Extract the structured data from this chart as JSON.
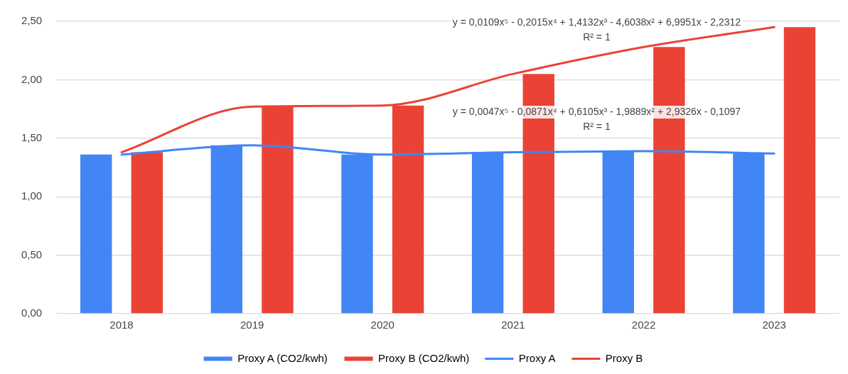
{
  "chart_data": {
    "type": "bar",
    "categories": [
      "2018",
      "2019",
      "2020",
      "2021",
      "2022",
      "2023"
    ],
    "series": [
      {
        "name": "Proxy A (CO2/kwh)",
        "color": "#4285f4",
        "values": [
          1.36,
          1.44,
          1.36,
          1.38,
          1.39,
          1.37
        ]
      },
      {
        "name": "Proxy B (CO2/kwh)",
        "color": "#ea4335",
        "values": [
          1.38,
          1.77,
          1.78,
          2.05,
          2.28,
          2.45
        ]
      },
      {
        "name": "Proxy A",
        "type": "line",
        "color": "#4285f4",
        "values": [
          1.36,
          1.44,
          1.36,
          1.38,
          1.39,
          1.37
        ]
      },
      {
        "name": "Proxy B",
        "type": "line",
        "color": "#ea4335",
        "values": [
          1.38,
          1.77,
          1.78,
          2.05,
          2.28,
          2.45
        ]
      }
    ],
    "ylim": [
      0,
      2.5
    ],
    "yticks": [
      {
        "value": 0,
        "label": "0,00"
      },
      {
        "value": 0.5,
        "label": "0,50"
      },
      {
        "value": 1,
        "label": "1,00"
      },
      {
        "value": 1.5,
        "label": "1,50"
      },
      {
        "value": 2,
        "label": "2,00"
      },
      {
        "value": 2.5,
        "label": "2,50"
      }
    ],
    "grid": "y",
    "legend": "bottom",
    "marker": "none",
    "annotations": [
      "y = 0,0109x⁵ - 0,2015x⁴ + 1,4132x³ - 4,6038x² + 6,9951x - 2,2312",
      "R² = 1",
      "y = 0,0047x⁵ - 0,0871x⁴ + 0,6105x³ - 1,9889x² + 2,9326x - 0,1097",
      "R² = 1"
    ]
  }
}
